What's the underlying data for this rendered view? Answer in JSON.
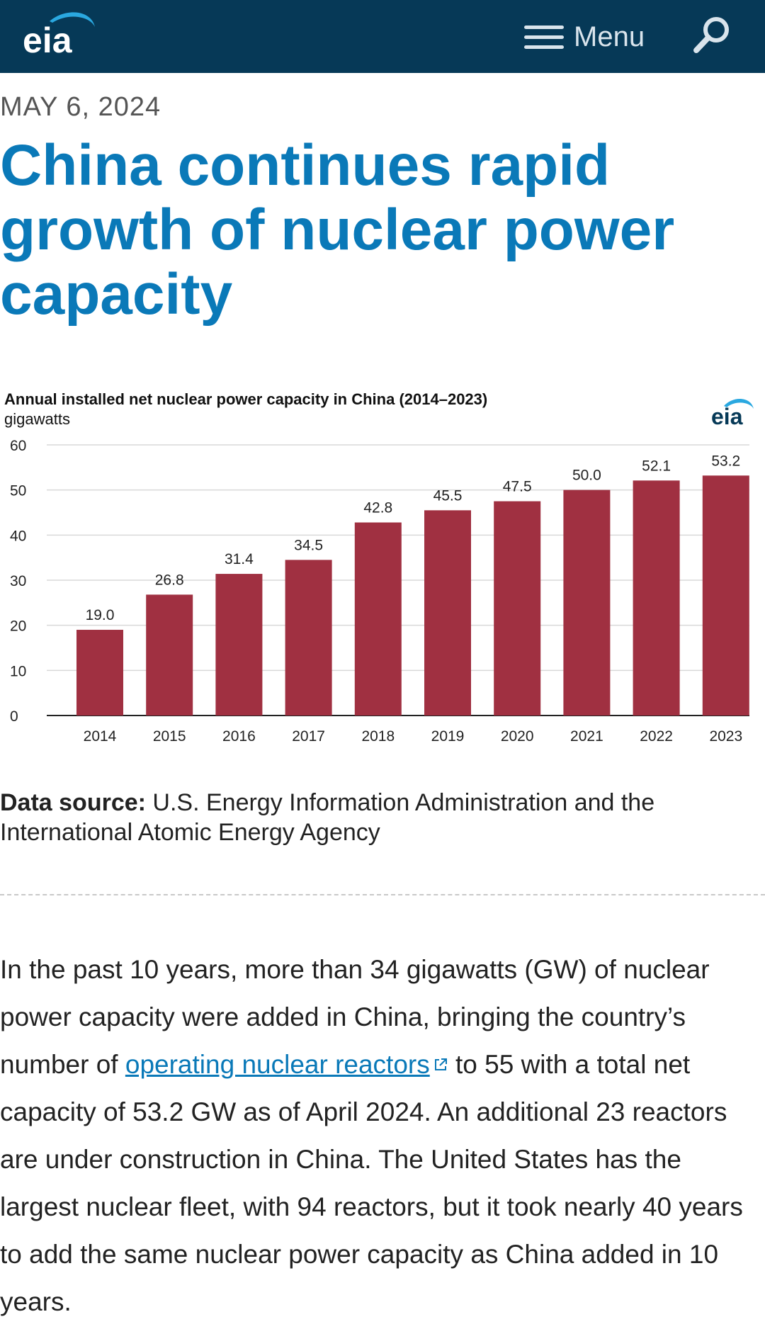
{
  "header": {
    "logo_text": "eia",
    "menu_label": "Menu",
    "menu_icon": "hamburger-icon",
    "search_icon": "search-icon"
  },
  "article": {
    "date": "MAY 6, 2024",
    "title": "China continues rapid growth of nuclear power capacity"
  },
  "chart_data": {
    "type": "bar",
    "title": "Annual installed net nuclear power capacity in China (2014–2023)",
    "ylabel": "gigawatts",
    "xlabel": "",
    "categories": [
      "2014",
      "2015",
      "2016",
      "2017",
      "2018",
      "2019",
      "2020",
      "2021",
      "2022",
      "2023"
    ],
    "values": [
      19.0,
      26.8,
      31.4,
      34.5,
      42.8,
      45.5,
      47.5,
      50.0,
      52.1,
      53.2
    ],
    "value_labels": [
      "19.0",
      "26.8",
      "31.4",
      "34.5",
      "42.8",
      "45.5",
      "47.5",
      "50.0",
      "52.1",
      "53.2"
    ],
    "yticks": [
      "0",
      "10",
      "20",
      "30",
      "40",
      "50",
      "60"
    ],
    "ylim": [
      0,
      60
    ],
    "grid": true,
    "bar_color": "#a03041",
    "logo_text": "eia"
  },
  "source": {
    "label": "Data source:",
    "text": "U.S. Energy Information Administration and the International Atomic Energy Agency"
  },
  "body": {
    "text_before": "In the past 10 years, more than 34 gigawatts (GW) of nuclear power capacity were added in China, bringing the country’s number of ",
    "link_text": "operating nuclear reactors",
    "text_after": " to 55 with a total net capacity of 53.2 GW as of April 2024. An additional 23 reactors are under construction in China. The United States has the largest nuclear fleet, with 94 reactors, but it took nearly 40 years to add the same nuclear power capacity as China added in 10 years.",
    "external_icon": "external-link-icon"
  },
  "colors": {
    "header_bg": "#063957",
    "accent_blue": "#0a79b8",
    "bar": "#a03041"
  }
}
